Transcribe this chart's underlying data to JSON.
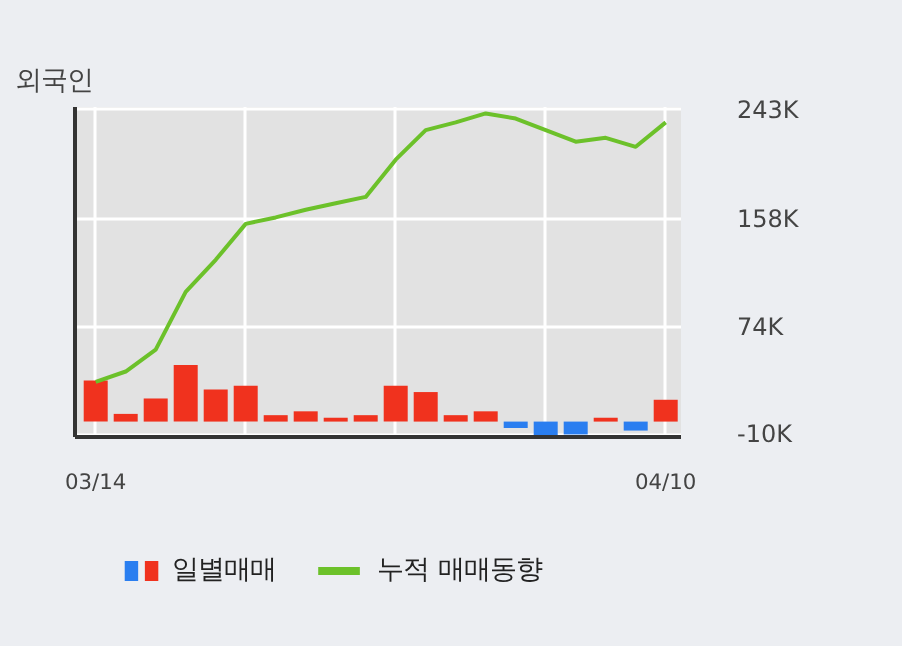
{
  "chart_data": {
    "type": "bar",
    "title": "외국인",
    "categories": [
      "03/14",
      null,
      null,
      null,
      null,
      null,
      null,
      null,
      null,
      null,
      null,
      null,
      null,
      null,
      null,
      null,
      null,
      null,
      null,
      "04/10"
    ],
    "ylim": [
      -12000,
      245000
    ],
    "yticks": [
      {
        "value": 243000,
        "label": "243K"
      },
      {
        "value": 158000,
        "label": "158K"
      },
      {
        "value": 74000,
        "label": "74K"
      },
      {
        "value": -10000,
        "label": "-10K"
      }
    ],
    "grid": true,
    "legend": "bottom",
    "series": [
      {
        "name": "일별매매",
        "colors": [
          "#f0321e",
          "#f0321e",
          "#f0321e",
          "#f0321e",
          "#f0321e",
          "#f0321e",
          "#f0321e",
          "#f0321e",
          "#f0321e",
          "#f0321e",
          "#f0321e",
          "#f0321e",
          "#f0321e",
          "#f0321e",
          "#2a7ef0",
          "#2a7ef0",
          "#2a7ef0",
          "#f0321e",
          "#2a7ef0",
          "#f0321e"
        ],
        "values": [
          32000,
          6000,
          18000,
          44000,
          25000,
          28000,
          5000,
          8000,
          3000,
          5000,
          28000,
          23000,
          5000,
          8000,
          -5000,
          -12000,
          -10000,
          3000,
          -7000,
          17000
        ]
      },
      {
        "name": "누적 매매동향",
        "type": "line",
        "color": "#6cc12a",
        "values": [
          31000,
          39000,
          56000,
          101000,
          126000,
          154000,
          159000,
          165000,
          170000,
          175000,
          204000,
          227000,
          233000,
          240000,
          236000,
          227000,
          218000,
          221000,
          214000,
          233000
        ]
      }
    ]
  }
}
